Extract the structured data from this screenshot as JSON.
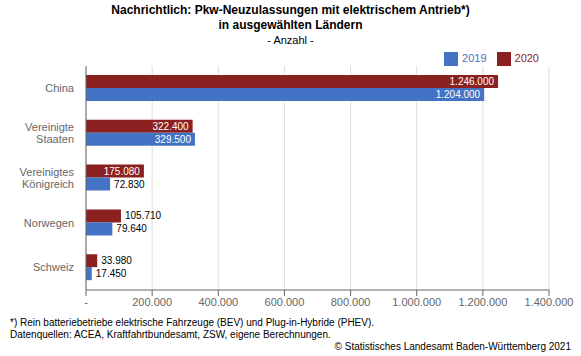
{
  "chart_data": {
    "type": "bar",
    "orientation": "horizontal",
    "title": "Nachrichtlich: Pkw-Neuzulassungen mit elektrischem Antrieb*)\nin ausgewählten Ländern",
    "subtitle": "- Anzahl -",
    "categories": [
      "Schweiz",
      "Norwegen",
      "Vereinigtes\nKönigreich",
      "Vereinigte\nStaaten",
      "China"
    ],
    "series": [
      {
        "name": "2020",
        "color": "#8B2020",
        "values": [
          33980,
          105710,
          175080,
          322400,
          1246000
        ],
        "value_labels": [
          "33.980",
          "105.710",
          "175.080",
          "322.400",
          "1.246.000"
        ]
      },
      {
        "name": "2019",
        "color": "#4472C4",
        "values": [
          17450,
          79640,
          72830,
          329500,
          1204000
        ],
        "value_labels": [
          "17.450",
          "79.640",
          "72.830",
          "329.500",
          "1.204.000"
        ]
      }
    ],
    "xlim": [
      0,
      1400000
    ],
    "xticks": [
      {
        "value": 0,
        "label": "-"
      },
      {
        "value": 200000,
        "label": "200.000"
      },
      {
        "value": 400000,
        "label": "400.000"
      },
      {
        "value": 600000,
        "label": "600.000"
      },
      {
        "value": 800000,
        "label": "800.000"
      },
      {
        "value": 1000000,
        "label": "1.000.000"
      },
      {
        "value": 1200000,
        "label": "1.200.000"
      },
      {
        "value": 1400000,
        "label": "1.400.000"
      }
    ],
    "grid": true,
    "legend": "upper right",
    "data_labels": true,
    "annotations": [
      "*) Rein batteriebetriebe elektrische Fahrzeuge (BEV) und Plug-in-Hybride (PHEV).",
      "Datenquellen: ACEA, Kraftfahrtbundesamt, ZSW, eigene Berechnungen.",
      "© Statistisches Landesamt Baden-Württemberg 2021"
    ]
  }
}
